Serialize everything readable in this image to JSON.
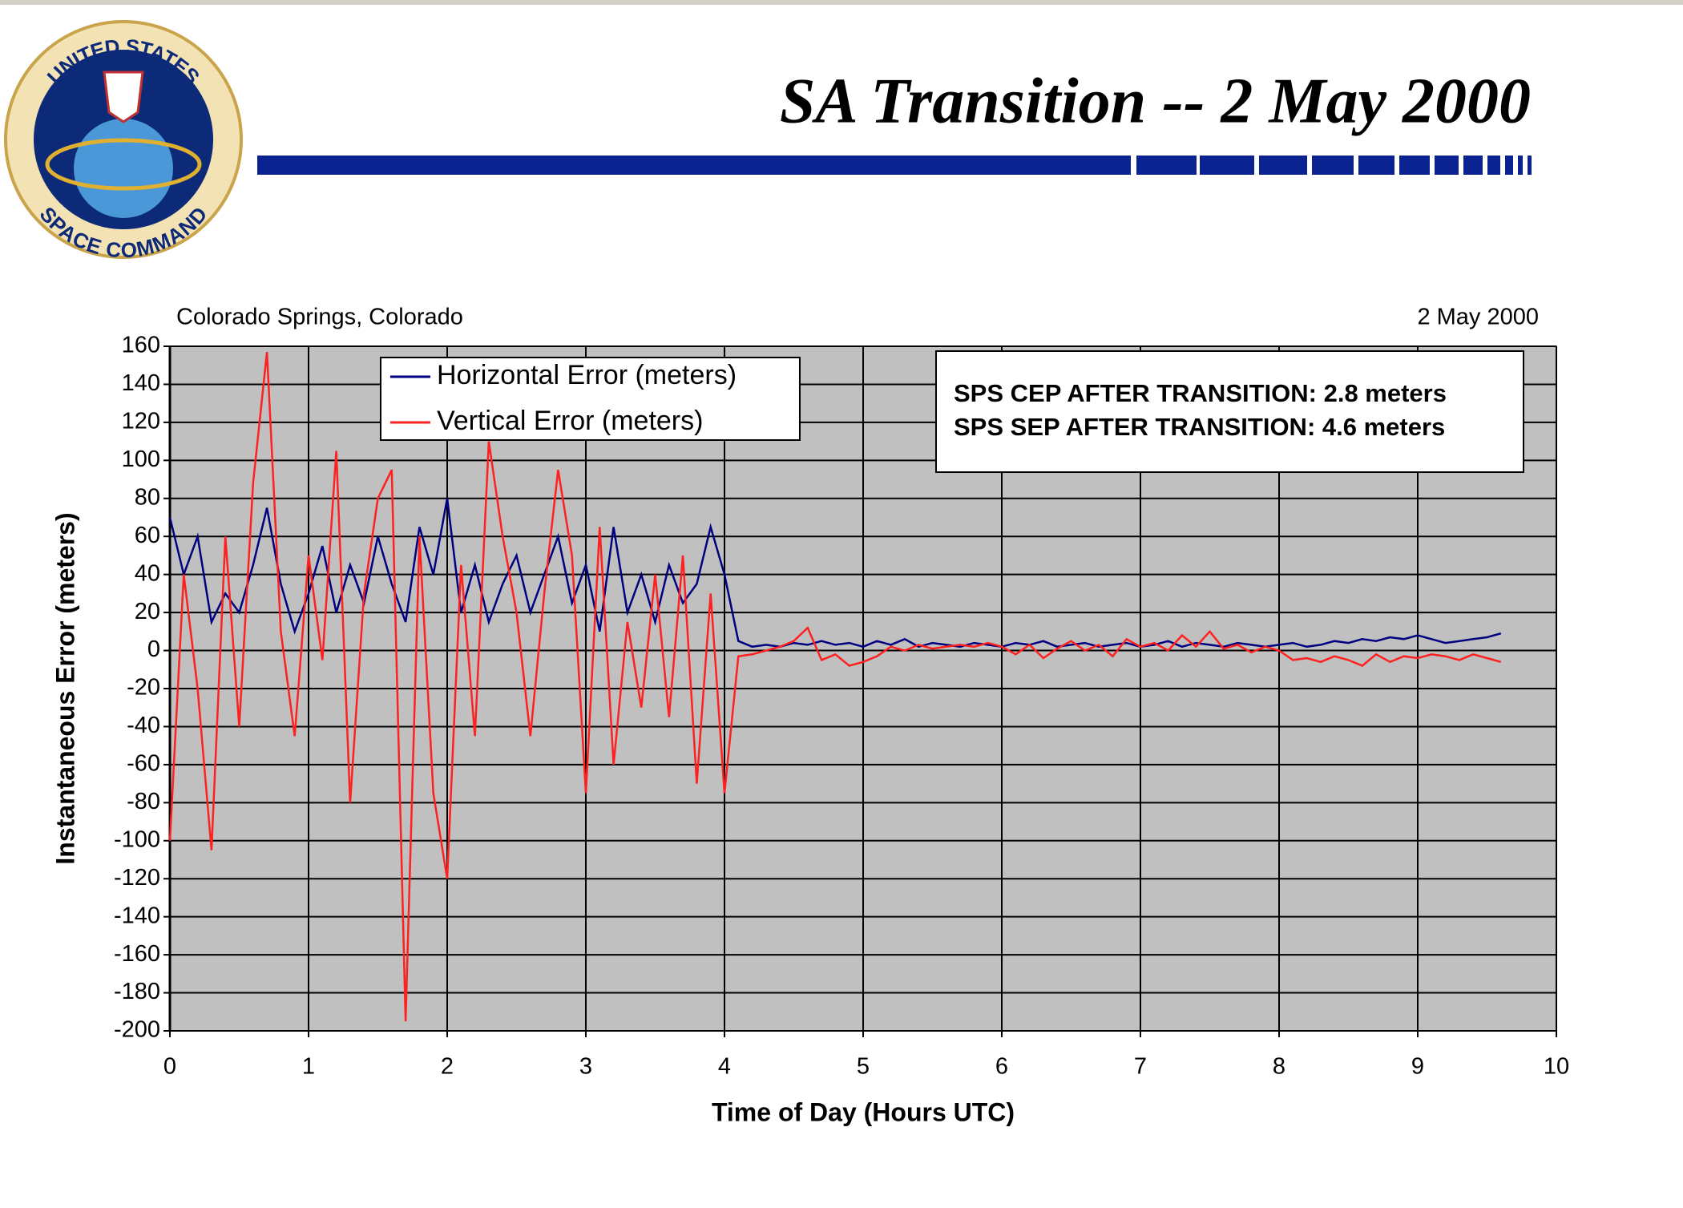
{
  "logo": {
    "top_text": "UNITED STATES",
    "bottom_text": "SPACE COMMAND"
  },
  "chart_data": {
    "type": "line",
    "title": "SA Transition -- 2 May 2000",
    "subtitle_left": "Colorado Springs, Colorado",
    "subtitle_right": "2 May 2000",
    "xlabel": "Time of Day (Hours UTC)",
    "ylabel": "Instantaneous Error (meters)",
    "annotations": [
      "SPS CEP AFTER TRANSITION:  2.8 meters",
      "SPS SEP AFTER TRANSITION:  4.6 meters"
    ],
    "legend": "upper center",
    "grid": true,
    "xlim": [
      0,
      10
    ],
    "xticks": [
      0,
      1,
      2,
      3,
      4,
      5,
      6,
      7,
      8,
      9,
      10
    ],
    "ylim": [
      -200,
      160
    ],
    "yticks": [
      -200,
      -180,
      -160,
      -140,
      -120,
      -100,
      -80,
      -60,
      -40,
      -20,
      0,
      20,
      40,
      60,
      80,
      100,
      120,
      140,
      160
    ],
    "x": [
      0,
      0.1,
      0.2,
      0.3,
      0.4,
      0.5,
      0.6,
      0.7,
      0.8,
      0.9,
      1,
      1.1,
      1.2,
      1.3,
      1.4,
      1.5,
      1.6,
      1.7,
      1.8,
      1.9,
      2,
      2.1,
      2.2,
      2.3,
      2.4,
      2.5,
      2.6,
      2.7,
      2.8,
      2.9,
      3,
      3.1,
      3.2,
      3.3,
      3.4,
      3.5,
      3.6,
      3.7,
      3.8,
      3.9,
      4,
      4.1,
      4.2,
      4.3,
      4.4,
      4.5,
      4.6,
      4.7,
      4.8,
      4.9,
      5,
      5.1,
      5.2,
      5.3,
      5.4,
      5.5,
      5.6,
      5.7,
      5.8,
      5.9,
      6,
      6.1,
      6.2,
      6.3,
      6.4,
      6.5,
      6.6,
      6.7,
      6.8,
      6.9,
      7,
      7.1,
      7.2,
      7.3,
      7.4,
      7.5,
      7.6,
      7.7,
      7.8,
      7.9,
      8,
      8.1,
      8.2,
      8.3,
      8.4,
      8.5,
      8.6,
      8.7,
      8.8,
      8.9,
      9,
      9.1,
      9.2,
      9.3,
      9.4,
      9.5,
      9.6
    ],
    "series": [
      {
        "name": "Horizontal Error (meters)",
        "color": "#000080",
        "values": [
          70,
          40,
          60,
          15,
          30,
          20,
          45,
          75,
          35,
          10,
          30,
          55,
          20,
          45,
          25,
          60,
          35,
          15,
          65,
          40,
          80,
          20,
          45,
          15,
          35,
          50,
          20,
          40,
          60,
          25,
          45,
          10,
          65,
          20,
          40,
          15,
          45,
          25,
          35,
          65,
          40,
          5,
          2,
          3,
          2,
          4,
          3,
          5,
          3,
          4,
          2,
          5,
          3,
          6,
          2,
          4,
          3,
          2,
          4,
          3,
          2,
          4,
          3,
          5,
          2,
          3,
          4,
          2,
          3,
          4,
          2,
          3,
          5,
          2,
          4,
          3,
          2,
          4,
          3,
          2,
          3,
          4,
          2,
          3,
          5,
          4,
          6,
          5,
          7,
          6,
          8,
          6,
          4,
          5,
          6,
          7,
          9
        ]
      },
      {
        "name": "Vertical Error (meters)",
        "color": "#ff2020",
        "values": [
          -100,
          40,
          -20,
          -105,
          60,
          -40,
          88,
          157,
          10,
          -45,
          50,
          -5,
          105,
          -80,
          30,
          80,
          95,
          -195,
          60,
          -75,
          -120,
          45,
          -45,
          110,
          60,
          20,
          -45,
          30,
          95,
          50,
          -75,
          65,
          -60,
          15,
          -30,
          40,
          -35,
          50,
          -70,
          30,
          -75,
          -3,
          -2,
          0,
          2,
          5,
          12,
          -5,
          -2,
          -8,
          -6,
          -3,
          2,
          0,
          3,
          1,
          2,
          3,
          2,
          4,
          2,
          -2,
          3,
          -4,
          1,
          5,
          0,
          3,
          -3,
          6,
          2,
          4,
          0,
          8,
          2,
          10,
          1,
          3,
          -1,
          2,
          0,
          -5,
          -4,
          -6,
          -3,
          -5,
          -8,
          -2,
          -6,
          -3,
          -4,
          -2,
          -3,
          -5,
          -2,
          -4,
          -6
        ]
      }
    ]
  }
}
